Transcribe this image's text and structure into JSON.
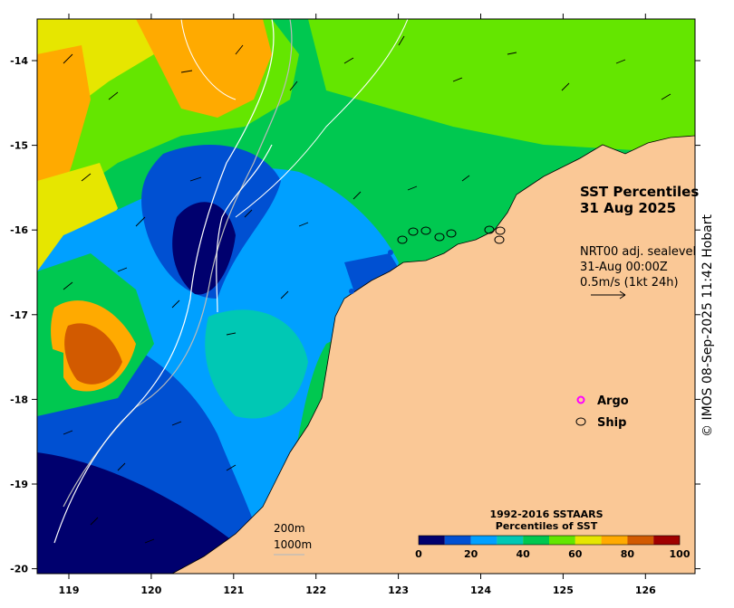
{
  "title": {
    "line1": "SST Percentiles",
    "line2": "31 Aug 2025"
  },
  "currents_info": {
    "line1": "NRT00 adj. sealevel",
    "line2": "31-Aug 00:00Z",
    "line3": "0.5m/s (1kt 24h)"
  },
  "legend": {
    "argo_label": "Argo",
    "ship_label": "Ship",
    "argo_color": "#ff00ff"
  },
  "colorbar": {
    "title_line1": "1992-2016 SSTAARS",
    "title_line2": "Percentiles of SST",
    "colors": [
      "#00006e",
      "#0050d2",
      "#00a0ff",
      "#00c8b4",
      "#00c850",
      "#64e600",
      "#e6e600",
      "#ffaa00",
      "#d25a00",
      "#a00000"
    ],
    "ticks": [
      "0",
      "20",
      "40",
      "60",
      "80",
      "100"
    ]
  },
  "isobaths": {
    "label_200": "200m",
    "label_1000": "1000m"
  },
  "axes": {
    "lon_ticks": [
      "119",
      "120",
      "121",
      "122",
      "123",
      "124",
      "125",
      "126"
    ],
    "lat_ticks": [
      "-14",
      "-15",
      "-16",
      "-17",
      "-18",
      "-19",
      "-20"
    ]
  },
  "credit": "© IMOS 08-Sep-2025 11:42 Hobart",
  "colors": {
    "land": "#fac896",
    "frame": "#000000"
  }
}
